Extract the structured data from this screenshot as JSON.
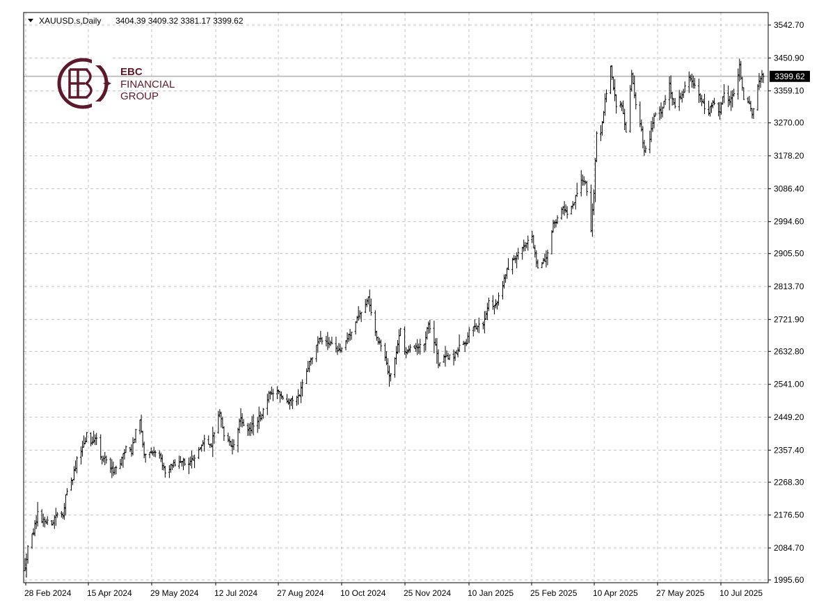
{
  "header": {
    "symbol": "XAUUSD.s,Daily",
    "ohlc": "3404.39 3409.32 3381.17 3399.62"
  },
  "logo": {
    "line1": "EBC",
    "line2": "FINANCIAL",
    "line3": "GROUP"
  },
  "colors": {
    "bars": "#000000",
    "grid": "#c0c0c0",
    "price_line": "#c0c0c0",
    "price_tag_bg": "#000000",
    "price_tag_text": "#ffffff",
    "logo": "#5b1a2b"
  },
  "chart_data": {
    "type": "ohlc",
    "symbol": "XAUUSD.s",
    "timeframe": "Daily",
    "current_price": "3399.62",
    "y_ticks": [
      "3542.70",
      "3450.90",
      "3359.10",
      "3270.00",
      "3178.20",
      "3086.40",
      "2994.60",
      "2905.50",
      "2813.70",
      "2721.90",
      "2632.80",
      "2541.00",
      "2449.20",
      "2357.40",
      "2268.30",
      "2176.50",
      "2084.70",
      "1995.60"
    ],
    "x_ticks": [
      "28 Feb 2024",
      "15 Apr 2024",
      "29 May 2024",
      "12 Jul 2024",
      "27 Aug 2024",
      "10 Oct 2024",
      "25 Nov 2024",
      "10 Jan 2025",
      "25 Feb 2025",
      "10 Apr 2025",
      "27 May 2025",
      "10 Jul 2025"
    ],
    "ylim": [
      1995.6,
      3542.7
    ],
    "grid": true,
    "close_path": [
      {
        "d": "2024-02-28",
        "c": 2035
      },
      {
        "d": "2024-03-01",
        "c": 2085
      },
      {
        "d": "2024-03-05",
        "c": 2128
      },
      {
        "d": "2024-03-08",
        "c": 2180
      },
      {
        "d": "2024-03-12",
        "c": 2158
      },
      {
        "d": "2024-03-15",
        "c": 2160
      },
      {
        "d": "2024-03-19",
        "c": 2155
      },
      {
        "d": "2024-03-21",
        "c": 2180
      },
      {
        "d": "2024-03-26",
        "c": 2178
      },
      {
        "d": "2024-03-28",
        "c": 2230
      },
      {
        "d": "2024-04-02",
        "c": 2280
      },
      {
        "d": "2024-04-05",
        "c": 2330
      },
      {
        "d": "2024-04-09",
        "c": 2360
      },
      {
        "d": "2024-04-12",
        "c": 2400
      },
      {
        "d": "2024-04-15",
        "c": 2380
      },
      {
        "d": "2024-04-19",
        "c": 2390
      },
      {
        "d": "2024-04-23",
        "c": 2325
      },
      {
        "d": "2024-04-26",
        "c": 2335
      },
      {
        "d": "2024-05-01",
        "c": 2300
      },
      {
        "d": "2024-05-06",
        "c": 2320
      },
      {
        "d": "2024-05-10",
        "c": 2365
      },
      {
        "d": "2024-05-14",
        "c": 2355
      },
      {
        "d": "2024-05-17",
        "c": 2410
      },
      {
        "d": "2024-05-20",
        "c": 2440
      },
      {
        "d": "2024-05-23",
        "c": 2340
      },
      {
        "d": "2024-05-28",
        "c": 2350
      },
      {
        "d": "2024-06-03",
        "c": 2340
      },
      {
        "d": "2024-06-07",
        "c": 2300
      },
      {
        "d": "2024-06-12",
        "c": 2315
      },
      {
        "d": "2024-06-18",
        "c": 2330
      },
      {
        "d": "2024-06-24",
        "c": 2320
      },
      {
        "d": "2024-06-28",
        "c": 2330
      },
      {
        "d": "2024-07-05",
        "c": 2390
      },
      {
        "d": "2024-07-10",
        "c": 2375
      },
      {
        "d": "2024-07-16",
        "c": 2465
      },
      {
        "d": "2024-07-19",
        "c": 2400
      },
      {
        "d": "2024-07-25",
        "c": 2365
      },
      {
        "d": "2024-07-31",
        "c": 2445
      },
      {
        "d": "2024-08-05",
        "c": 2410
      },
      {
        "d": "2024-08-09",
        "c": 2430
      },
      {
        "d": "2024-08-14",
        "c": 2450
      },
      {
        "d": "2024-08-20",
        "c": 2510
      },
      {
        "d": "2024-08-23",
        "c": 2515
      },
      {
        "d": "2024-08-27",
        "c": 2520
      },
      {
        "d": "2024-09-02",
        "c": 2495
      },
      {
        "d": "2024-09-06",
        "c": 2500
      },
      {
        "d": "2024-09-11",
        "c": 2515
      },
      {
        "d": "2024-09-16",
        "c": 2580
      },
      {
        "d": "2024-09-20",
        "c": 2620
      },
      {
        "d": "2024-09-26",
        "c": 2670
      },
      {
        "d": "2024-10-01",
        "c": 2660
      },
      {
        "d": "2024-10-07",
        "c": 2645
      },
      {
        "d": "2024-10-10",
        "c": 2630
      },
      {
        "d": "2024-10-16",
        "c": 2675
      },
      {
        "d": "2024-10-21",
        "c": 2720
      },
      {
        "d": "2024-10-25",
        "c": 2745
      },
      {
        "d": "2024-10-30",
        "c": 2785
      },
      {
        "d": "2024-11-01",
        "c": 2740
      },
      {
        "d": "2024-11-06",
        "c": 2660
      },
      {
        "d": "2024-11-11",
        "c": 2620
      },
      {
        "d": "2024-11-14",
        "c": 2565
      },
      {
        "d": "2024-11-18",
        "c": 2610
      },
      {
        "d": "2024-11-22",
        "c": 2700
      },
      {
        "d": "2024-11-25",
        "c": 2625
      },
      {
        "d": "2024-11-29",
        "c": 2650
      },
      {
        "d": "2024-12-04",
        "c": 2640
      },
      {
        "d": "2024-12-09",
        "c": 2655
      },
      {
        "d": "2024-12-12",
        "c": 2710
      },
      {
        "d": "2024-12-17",
        "c": 2645
      },
      {
        "d": "2024-12-19",
        "c": 2595
      },
      {
        "d": "2024-12-24",
        "c": 2615
      },
      {
        "d": "2024-12-30",
        "c": 2620
      },
      {
        "d": "2025-01-03",
        "c": 2645
      },
      {
        "d": "2025-01-08",
        "c": 2660
      },
      {
        "d": "2025-01-10",
        "c": 2690
      },
      {
        "d": "2025-01-15",
        "c": 2700
      },
      {
        "d": "2025-01-20",
        "c": 2705
      },
      {
        "d": "2025-01-24",
        "c": 2770
      },
      {
        "d": "2025-01-29",
        "c": 2760
      },
      {
        "d": "2025-02-03",
        "c": 2815
      },
      {
        "d": "2025-02-06",
        "c": 2860
      },
      {
        "d": "2025-02-11",
        "c": 2895
      },
      {
        "d": "2025-02-14",
        "c": 2905
      },
      {
        "d": "2025-02-19",
        "c": 2930
      },
      {
        "d": "2025-02-24",
        "c": 2950
      },
      {
        "d": "2025-02-28",
        "c": 2860
      },
      {
        "d": "2025-03-04",
        "c": 2880
      },
      {
        "d": "2025-03-07",
        "c": 2910
      },
      {
        "d": "2025-03-11",
        "c": 2985
      },
      {
        "d": "2025-03-14",
        "c": 3000
      },
      {
        "d": "2025-03-18",
        "c": 3030
      },
      {
        "d": "2025-03-21",
        "c": 3020
      },
      {
        "d": "2025-03-26",
        "c": 3050
      },
      {
        "d": "2025-03-31",
        "c": 3115
      },
      {
        "d": "2025-04-03",
        "c": 3110
      },
      {
        "d": "2025-04-07",
        "c": 2970
      },
      {
        "d": "2025-04-09",
        "c": 3080
      },
      {
        "d": "2025-04-11",
        "c": 3235
      },
      {
        "d": "2025-04-14",
        "c": 3240
      },
      {
        "d": "2025-04-17",
        "c": 3330
      },
      {
        "d": "2025-04-21",
        "c": 3420
      },
      {
        "d": "2025-04-25",
        "c": 3320
      },
      {
        "d": "2025-04-29",
        "c": 3315
      },
      {
        "d": "2025-05-02",
        "c": 3250
      },
      {
        "d": "2025-05-06",
        "c": 3400
      },
      {
        "d": "2025-05-09",
        "c": 3325
      },
      {
        "d": "2025-05-13",
        "c": 3245
      },
      {
        "d": "2025-05-15",
        "c": 3195
      },
      {
        "d": "2025-05-19",
        "c": 3230
      },
      {
        "d": "2025-05-22",
        "c": 3290
      },
      {
        "d": "2025-05-27",
        "c": 3305
      },
      {
        "d": "2025-06-02",
        "c": 3375
      },
      {
        "d": "2025-06-06",
        "c": 3315
      },
      {
        "d": "2025-06-11",
        "c": 3350
      },
      {
        "d": "2025-06-16",
        "c": 3400
      },
      {
        "d": "2025-06-20",
        "c": 3370
      },
      {
        "d": "2025-06-25",
        "c": 3325
      },
      {
        "d": "2025-06-30",
        "c": 3300
      },
      {
        "d": "2025-07-03",
        "c": 3330
      },
      {
        "d": "2025-07-08",
        "c": 3300
      },
      {
        "d": "2025-07-11",
        "c": 3355
      },
      {
        "d": "2025-07-15",
        "c": 3325
      },
      {
        "d": "2025-07-18",
        "c": 3350
      },
      {
        "d": "2025-07-22",
        "c": 3430
      },
      {
        "d": "2025-07-25",
        "c": 3335
      },
      {
        "d": "2025-07-29",
        "c": 3325
      },
      {
        "d": "2025-07-31",
        "c": 3290
      },
      {
        "d": "2025-08-04",
        "c": 3375
      },
      {
        "d": "2025-08-07",
        "c": 3400
      }
    ],
    "last_bar": {
      "date": "2025-08-08",
      "open": 3404.39,
      "high": 3409.32,
      "low": 3381.17,
      "close": 3399.62
    }
  }
}
